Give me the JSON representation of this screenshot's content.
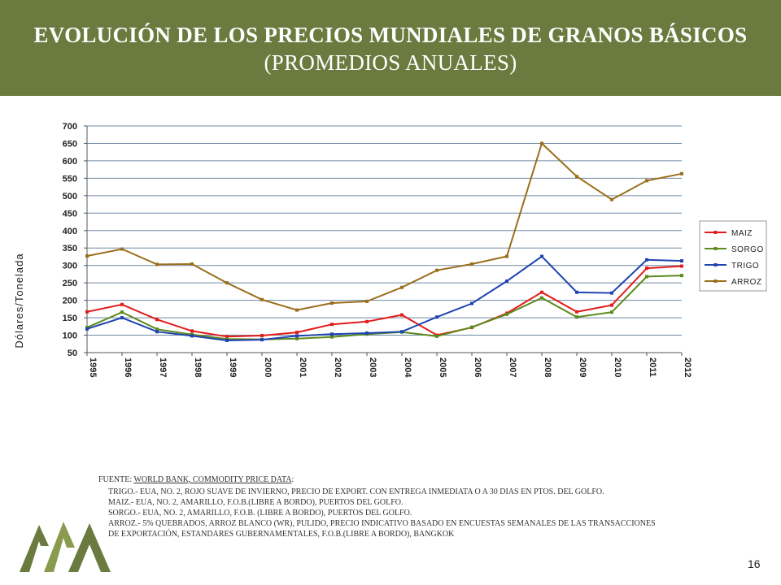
{
  "slide": {
    "title_line1": "EVOLUCIÓN DE LOS PRECIOS MUNDIALES DE GRANOS BÁSICOS",
    "title_line2": "(PROMEDIOS ANUALES)",
    "page_number": "16",
    "header_color": "#6b7a3e"
  },
  "chart_data": {
    "type": "line",
    "ylabel": "Dólares/Tonelada",
    "xlabel": "",
    "ylim": [
      50,
      700
    ],
    "yticks": [
      50,
      100,
      150,
      200,
      250,
      300,
      350,
      400,
      450,
      500,
      550,
      600,
      650,
      700
    ],
    "x": [
      "1995",
      "1996",
      "1997",
      "1998",
      "1999",
      "2000",
      "2001",
      "2002",
      "2003",
      "2004",
      "2005",
      "2006",
      "2007",
      "2008",
      "2009",
      "2010",
      "2011",
      "2012"
    ],
    "grid": true,
    "legend_position": "right",
    "series": [
      {
        "name": "MAIZ",
        "color": "#e31b1b",
        "values": [
          167,
          188,
          145,
          112,
          96,
          99,
          108,
          131,
          139,
          158,
          100,
          122,
          163,
          223,
          167,
          186,
          292,
          298
        ]
      },
      {
        "name": "SORGO",
        "color": "#5c8a1c",
        "values": [
          122,
          166,
          117,
          102,
          89,
          88,
          90,
          95,
          103,
          109,
          97,
          123,
          160,
          207,
          152,
          166,
          268,
          271
        ]
      },
      {
        "name": "TRIGO",
        "color": "#1f44b0",
        "values": [
          118,
          150,
          110,
          98,
          85,
          87,
          98,
          103,
          106,
          110,
          152,
          191,
          255,
          326,
          223,
          221,
          316,
          313
        ]
      },
      {
        "name": "ARROZ",
        "color": "#9a6e1c",
        "values": [
          327,
          347,
          303,
          304,
          250,
          202,
          172,
          192,
          197,
          237,
          286,
          304,
          326,
          650,
          555,
          489,
          543,
          563
        ]
      }
    ]
  },
  "notes": {
    "source_prefix": "FUENTE: ",
    "source_link": "WORLD BANK, COMMODITY PRICE DATA",
    "source_suffix": ":",
    "trigo": "TRIGO.- EUA, NO. 2, ROJO SUAVE DE INVIERNO, PRECIO DE EXPORT. CON ENTREGA INMEDIATA O A 30 DIAS EN PTOS. DEL GOLFO.",
    "maiz": "MAIZ.- EUA, NO. 2, AMARILLO, F.O.B.(LIBRE A BORDO), PUERTOS DEL GOLFO.",
    "sorgo": "SORGO.- EUA, NO. 2, AMARILLO, F.O.B. (LIBRE A BORDO), PUERTOS DEL GOLFO.",
    "arroz1": "ARROZ.- 5% QUEBRADOS, ARROZ BLANCO (WR), PULIDO, PRECIO INDICATIVO BASADO EN ENCUESTAS SEMANALES DE LAS TRANSACCIONES",
    "arroz2": "DE EXPORTACIÓN, ESTANDARES GUBERNAMENTALES, F.O.B.(LIBRE A BORDO), BANGKOK"
  }
}
